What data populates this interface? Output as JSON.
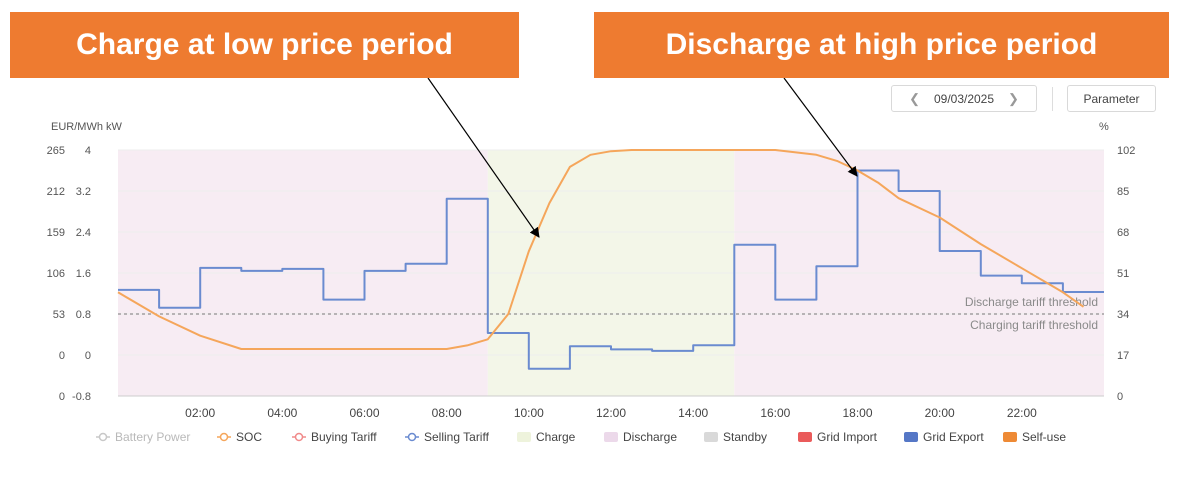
{
  "banners": {
    "left": "Charge at low price period",
    "right": "Discharge at high price period"
  },
  "toolbar": {
    "date": "09/03/2025",
    "prev_icon": "chevron-left-icon",
    "next_icon": "chevron-right-icon",
    "parameter_label": "Parameter"
  },
  "chart_data": {
    "type": "line",
    "x_range_hours": [
      0,
      24
    ],
    "x_ticks": [
      "02:00",
      "04:00",
      "06:00",
      "08:00",
      "10:00",
      "12:00",
      "14:00",
      "16:00",
      "18:00",
      "20:00",
      "22:00"
    ],
    "left_axis_labels": [
      "EUR/MWh",
      "kW"
    ],
    "left_outer_ticks": [
      "265",
      "212",
      "159",
      "106",
      "53",
      "0"
    ],
    "left_outer_range": [
      0,
      265
    ],
    "left_inner_ticks": [
      "4",
      "3.2",
      "2.4",
      "1.6",
      "0.8",
      "0",
      "-0.8"
    ],
    "left_inner_range": [
      -0.8,
      4
    ],
    "right_axis_label": "%",
    "right_ticks": [
      "102",
      "85",
      "68",
      "51",
      "34",
      "17",
      "0"
    ],
    "right_range": [
      0,
      102
    ],
    "grid": true,
    "regions": [
      {
        "name": "Discharge",
        "start": 0,
        "end": 9,
        "color": "#f7ecf3"
      },
      {
        "name": "Charge",
        "start": 9,
        "end": 15,
        "color": "#f3f6e8"
      },
      {
        "name": "Discharge",
        "start": 15,
        "end": 24,
        "color": "#f7ecf3"
      }
    ],
    "thresholds": [
      {
        "label": "Discharge tariff threshold",
        "value": 0.8
      },
      {
        "label": "Charging tariff threshold",
        "value": 0.8
      }
    ],
    "series": [
      {
        "name": "Selling Tariff",
        "color": "#6a8bd0",
        "step": true,
        "axis": "kW",
        "x": [
          0,
          1,
          2,
          3,
          4,
          5,
          6,
          7,
          8,
          9,
          10,
          11,
          12,
          13,
          14,
          15,
          16,
          17,
          18,
          19,
          20,
          21,
          22,
          23
        ],
        "y": [
          1.27,
          0.92,
          1.7,
          1.64,
          1.68,
          1.08,
          1.64,
          1.78,
          3.05,
          0.43,
          -0.27,
          0.17,
          0.11,
          0.08,
          0.19,
          2.15,
          1.08,
          1.73,
          3.6,
          3.2,
          2.03,
          1.55,
          1.4,
          1.23
        ],
        "x_end": 24
      },
      {
        "name": "SOC",
        "color": "#f5a65b",
        "step": false,
        "axis": "%",
        "x": [
          0,
          1,
          2,
          3,
          4,
          5,
          6,
          7,
          8,
          8.5,
          9,
          9.5,
          10,
          10.5,
          11,
          11.5,
          12,
          12.5,
          13,
          14,
          15,
          16,
          17,
          17.5,
          18,
          18.5,
          19,
          20,
          21,
          22,
          23,
          23.5
        ],
        "y": [
          43,
          33,
          25,
          19.5,
          19.5,
          19.5,
          19.5,
          19.5,
          19.5,
          21,
          23.5,
          34,
          60,
          80,
          95,
          100,
          101.5,
          102,
          102,
          102,
          102,
          102,
          100,
          97.5,
          93.5,
          88.5,
          82,
          74,
          63,
          53,
          43,
          37
        ]
      }
    ],
    "legend": [
      {
        "label": "Battery Power",
        "style": "line",
        "color": "#c8c8c8"
      },
      {
        "label": "SOC",
        "style": "line",
        "color": "#f5a65b"
      },
      {
        "label": "Buying Tariff",
        "style": "line",
        "color": "#f08a8a"
      },
      {
        "label": "Selling Tariff",
        "style": "line",
        "color": "#6a8bd0"
      },
      {
        "label": "Charge",
        "style": "box",
        "color": "#eef3dc"
      },
      {
        "label": "Discharge",
        "style": "box",
        "color": "#ecd9ea"
      },
      {
        "label": "Standby",
        "style": "box",
        "color": "#d9d9d9"
      },
      {
        "label": "Grid Import",
        "style": "box",
        "color": "#ea5b5b"
      },
      {
        "label": "Grid Export",
        "style": "box",
        "color": "#5577c6"
      },
      {
        "label": "Self-use",
        "style": "box",
        "color": "#ee8a35"
      }
    ],
    "legend_position": "bottom"
  }
}
